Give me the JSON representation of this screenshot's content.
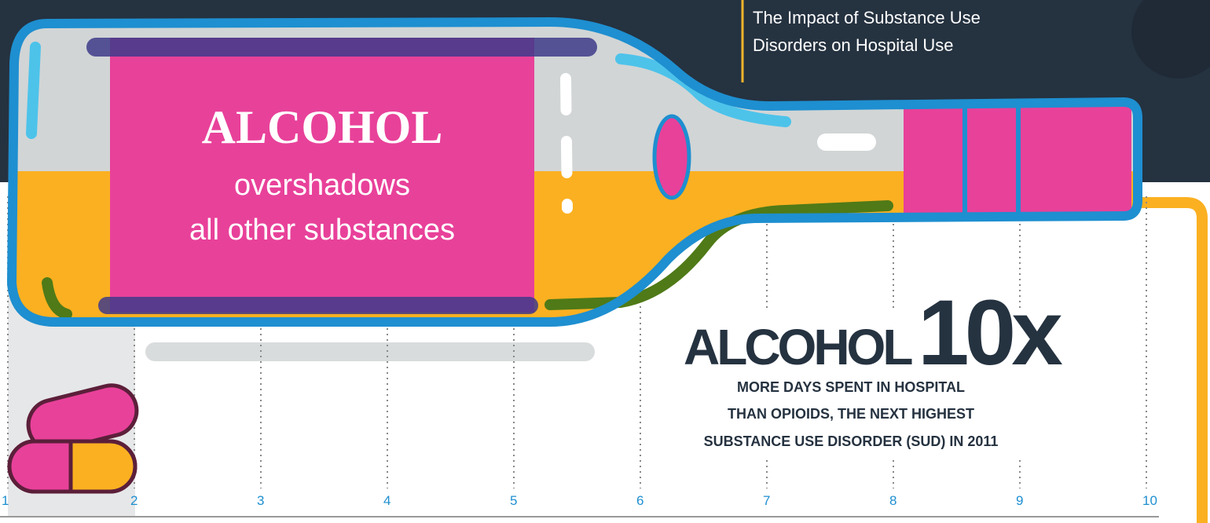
{
  "header": {
    "title_lines": [
      "The Impact of Substance Use",
      "Disorders on Hospital Use"
    ]
  },
  "bottle_label": {
    "title": "ALCOHOL",
    "line1": "overshadows",
    "line2": "all other substances"
  },
  "callout": {
    "word": "ALCOHOL",
    "multiplier": "10x",
    "lines": [
      "MORE DAYS SPENT IN HOSPITAL",
      "THAN OPIOIDS, THE NEXT HIGHEST",
      "SUBSTANCE USE DISORDER (SUD) IN 2011"
    ]
  },
  "axis": {
    "ticks": [
      1,
      2,
      3,
      4,
      5,
      6,
      7,
      8,
      9,
      10
    ]
  }
}
